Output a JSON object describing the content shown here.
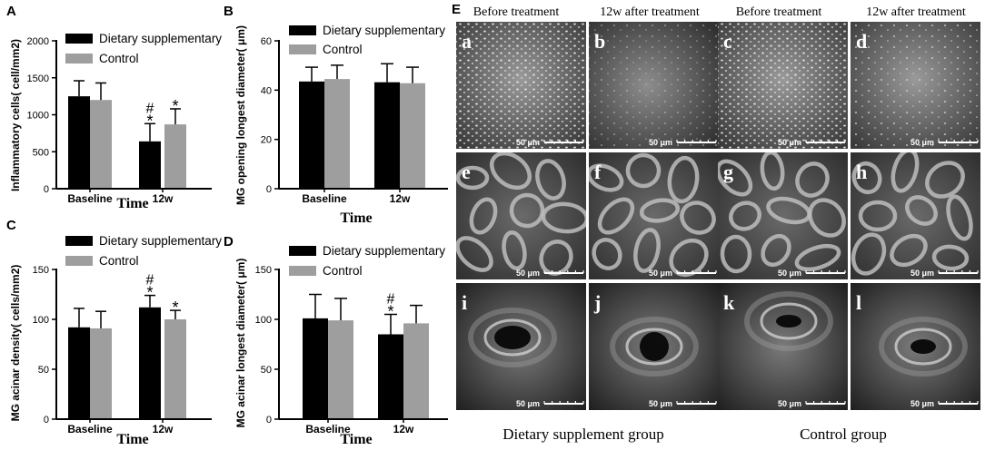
{
  "legend": {
    "dietary": "Dietary supplementary",
    "control": "Control"
  },
  "colors": {
    "dietary": "#000000",
    "control": "#9e9e9e"
  },
  "chart_data": [
    {
      "type": "bar",
      "panel": "A",
      "categories": [
        "Baseline",
        "12w"
      ],
      "series": [
        {
          "name": "Dietary supplementary",
          "values": [
            1250,
            640
          ],
          "errors": [
            210,
            240
          ]
        },
        {
          "name": "Control",
          "values": [
            1200,
            870
          ],
          "errors": [
            230,
            210
          ]
        }
      ],
      "ylabel": "Inflammatory cells( cell/mm2)",
      "xlabel": "Time",
      "ylim": [
        0,
        2000
      ],
      "yticks": [
        "0",
        "500",
        "1000",
        "1500",
        "2000"
      ],
      "significance": [
        {
          "category": 1,
          "series": 0,
          "marks": [
            "#",
            "*"
          ]
        },
        {
          "category": 1,
          "series": 1,
          "marks": [
            "*"
          ]
        }
      ],
      "legend_position": "top-right"
    },
    {
      "type": "bar",
      "panel": "B",
      "categories": [
        "Baseline",
        "12w"
      ],
      "series": [
        {
          "name": "Dietary supplementary",
          "values": [
            43.5,
            43.2
          ],
          "errors": [
            5.8,
            7.5
          ]
        },
        {
          "name": "Control",
          "values": [
            44.5,
            42.8
          ],
          "errors": [
            5.6,
            6.5
          ]
        }
      ],
      "ylabel": "MG opening longest diameter( μm)",
      "xlabel": "Time",
      "ylim": [
        0,
        60
      ],
      "yticks": [
        "0",
        "20",
        "40",
        "60"
      ],
      "significance": [],
      "legend_position": "top-right"
    },
    {
      "type": "bar",
      "panel": "C",
      "categories": [
        "Baseline",
        "12w"
      ],
      "series": [
        {
          "name": "Dietary supplementary",
          "values": [
            92,
            112
          ],
          "errors": [
            19,
            12
          ]
        },
        {
          "name": "Control",
          "values": [
            91,
            100
          ],
          "errors": [
            17,
            9
          ]
        }
      ],
      "ylabel": "MG acinar density( cells/mm2)",
      "xlabel": "Time",
      "ylim": [
        0,
        150
      ],
      "yticks": [
        "0",
        "50",
        "100",
        "150"
      ],
      "significance": [
        {
          "category": 1,
          "series": 0,
          "marks": [
            "#",
            "*"
          ]
        },
        {
          "category": 1,
          "series": 1,
          "marks": [
            "*"
          ]
        }
      ],
      "legend_position": "top-right"
    },
    {
      "type": "bar",
      "panel": "D",
      "categories": [
        "Baseline",
        "12w"
      ],
      "series": [
        {
          "name": "Dietary supplementary",
          "values": [
            101,
            85
          ],
          "errors": [
            24,
            20
          ]
        },
        {
          "name": "Control",
          "values": [
            99,
            96
          ],
          "errors": [
            22,
            18
          ]
        }
      ],
      "ylabel": "MG acinar longest diameter( μm)",
      "xlabel": "Time",
      "ylim": [
        0,
        150
      ],
      "yticks": [
        "0",
        "50",
        "100",
        "150"
      ],
      "significance": [
        {
          "category": 1,
          "series": 0,
          "marks": [
            "#",
            "*"
          ]
        }
      ],
      "legend_position": "top-right"
    }
  ],
  "image_panel": {
    "label": "E",
    "column_headers": [
      "Before treatment",
      "12w after treatment",
      "Before treatment",
      "12w after treatment"
    ],
    "group_labels": [
      "Dietary supplement group",
      "Control group"
    ],
    "tile_letters": [
      "a",
      "b",
      "c",
      "d",
      "e",
      "f",
      "g",
      "h",
      "i",
      "j",
      "k",
      "l"
    ],
    "scale_bar_label": "50 μm"
  }
}
